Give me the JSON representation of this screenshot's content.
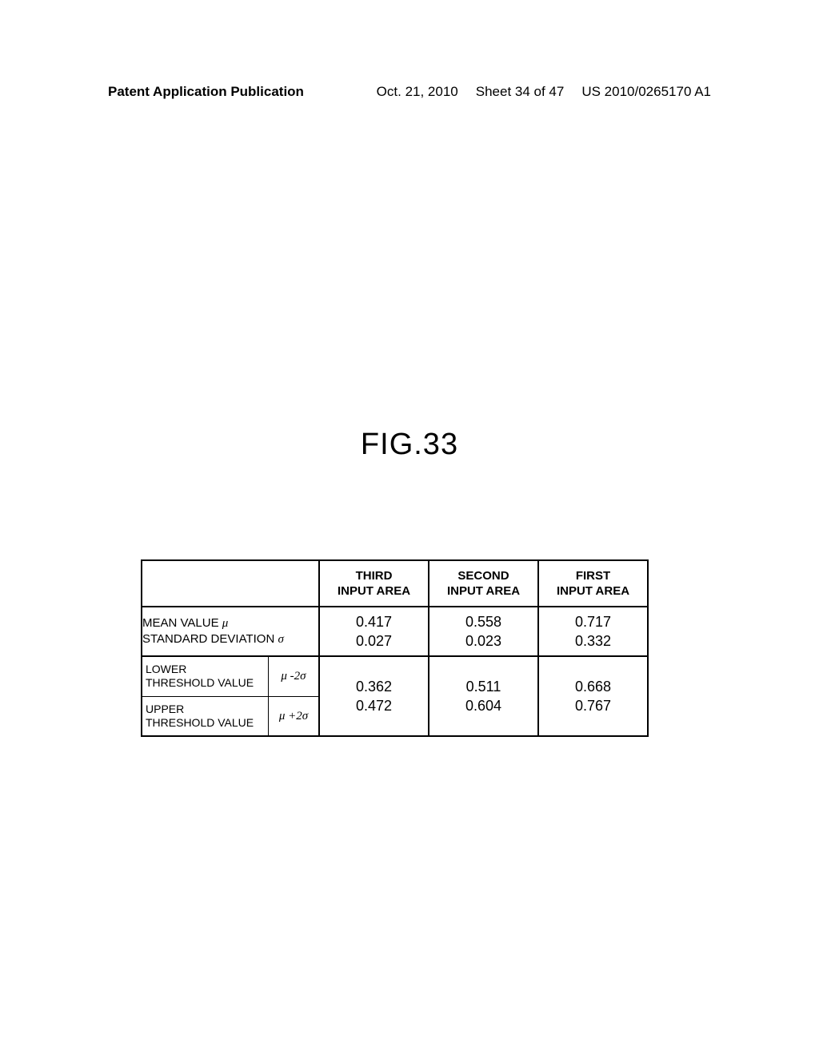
{
  "header": {
    "left": "Patent Application Publication",
    "date": "Oct. 21, 2010",
    "sheet": "Sheet 34 of 47",
    "pubno": "US 2010/0265170 A1"
  },
  "figure": {
    "title": "FIG.33"
  },
  "table": {
    "type": "table",
    "columns": [
      {
        "line1": "THIRD",
        "line2": "INPUT AREA"
      },
      {
        "line1": "SECOND",
        "line2": "INPUT AREA"
      },
      {
        "line1": "FIRST",
        "line2": "INPUT AREA"
      }
    ],
    "row1": {
      "label_line1": "MEAN VALUE",
      "label_line1_sym": "μ",
      "label_line2": "STANDARD DEVIATION",
      "label_line2_sym": "σ",
      "cells": [
        {
          "v1": "0.417",
          "v2": "0.027"
        },
        {
          "v1": "0.558",
          "v2": "0.023"
        },
        {
          "v1": "0.717",
          "v2": "0.332"
        }
      ]
    },
    "row2": {
      "sub1_l1": "LOWER",
      "sub1_l2": "THRESHOLD VALUE",
      "sub1_sym": "μ -2σ",
      "sub2_l1": "UPPER",
      "sub2_l2": "THRESHOLD VALUE",
      "sub2_sym": "μ +2σ",
      "cells": [
        {
          "v1": "0.362",
          "v2": "0.472"
        },
        {
          "v1": "0.511",
          "v2": "0.604"
        },
        {
          "v1": "0.668",
          "v2": "0.767"
        }
      ]
    },
    "border_color": "#000000",
    "background_color": "#ffffff",
    "font_size_header": 15,
    "font_size_data": 18
  }
}
